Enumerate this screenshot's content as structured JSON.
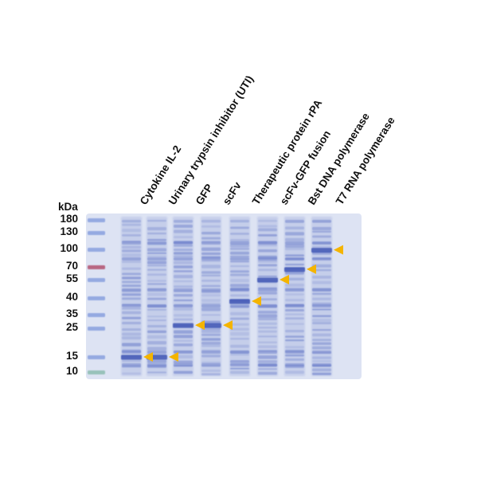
{
  "unit_label": "kDa",
  "marker_weights": [
    "180",
    "130",
    "100",
    "70",
    "55",
    "40",
    "35",
    "25",
    "15",
    "10"
  ],
  "lanes": [
    {
      "label": "",
      "target_kda": null
    },
    {
      "label": "Cytokine IL-2",
      "target_kda": 15
    },
    {
      "label": "Urinary trypsin inhibitor (UTI)",
      "target_kda": 15
    },
    {
      "label": "GFP",
      "target_kda": 27
    },
    {
      "label": "scFv",
      "target_kda": 27
    },
    {
      "label": "Therapeutic protein rPA",
      "target_kda": 39
    },
    {
      "label": "scFv-GFP fusion",
      "target_kda": 55
    },
    {
      "label": "Bst DNA polymerase",
      "target_kda": 67
    },
    {
      "label": "T7 RNA polymerase",
      "target_kda": 99
    }
  ],
  "colors": {
    "gel_background": "#dde3f3",
    "band": "#5e73c6",
    "marker_band": "#7d97dc",
    "marker_70": "#b45a76",
    "marker_10": "#8cbdb1",
    "arrow": "#f4b400"
  }
}
